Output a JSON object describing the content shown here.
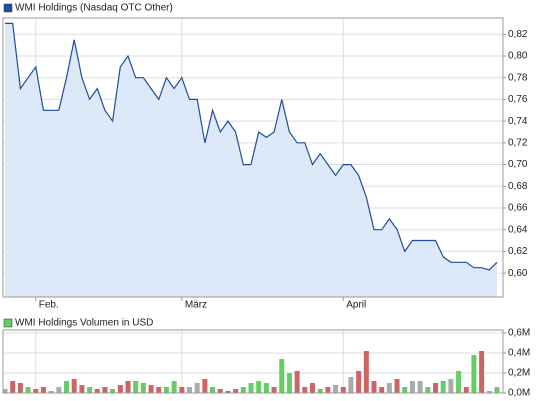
{
  "chart_data": [
    {
      "type": "line",
      "categories": [
        null,
        null,
        null,
        null,
        null,
        null,
        null,
        null,
        null,
        null,
        null,
        null,
        null,
        null,
        null,
        null,
        null,
        null,
        null,
        null,
        null,
        null,
        null,
        null,
        null,
        null,
        null,
        null,
        null,
        null,
        null,
        null,
        null,
        null,
        null,
        null,
        null,
        null,
        null,
        null,
        null,
        null,
        null,
        null,
        null,
        null,
        null,
        null,
        null,
        null,
        null,
        null,
        null,
        null,
        null,
        null,
        null,
        null,
        null,
        null,
        null,
        null,
        null,
        null,
        null
      ],
      "series": [
        {
          "name": "WMI Holdings (Nasdaq OTC Other)",
          "color": "#1f4e9c",
          "fill": "#dde8f8",
          "values": [
            0.83,
            0.83,
            0.77,
            0.78,
            0.79,
            0.75,
            0.75,
            0.75,
            0.78,
            0.815,
            0.78,
            0.76,
            0.77,
            0.75,
            0.74,
            0.79,
            0.8,
            0.78,
            0.78,
            0.77,
            0.76,
            0.78,
            0.77,
            0.78,
            0.76,
            0.76,
            0.72,
            0.75,
            0.73,
            0.74,
            0.73,
            0.7,
            0.7,
            0.73,
            0.725,
            0.73,
            0.76,
            0.73,
            0.72,
            0.72,
            0.7,
            0.71,
            0.7,
            0.69,
            0.7,
            0.7,
            0.69,
            0.67,
            0.64,
            0.64,
            0.65,
            0.64,
            0.62,
            0.63,
            0.63,
            0.63,
            0.63,
            0.615,
            0.61,
            0.61,
            0.61,
            0.605,
            0.605,
            0.603,
            0.61
          ]
        }
      ],
      "xticks": [
        {
          "value": 4,
          "label": "Feb."
        },
        {
          "value": 23,
          "label": "März"
        },
        {
          "value": 44,
          "label": "April"
        }
      ],
      "ylim": [
        0.578,
        0.835
      ],
      "yticks": [
        {
          "value": 0.6,
          "label": "0,60"
        },
        {
          "value": 0.62,
          "label": "0,62"
        },
        {
          "value": 0.64,
          "label": "0,64"
        },
        {
          "value": 0.66,
          "label": "0,66"
        },
        {
          "value": 0.68,
          "label": "0,68"
        },
        {
          "value": 0.7,
          "label": "0,70"
        },
        {
          "value": 0.72,
          "label": "0,72"
        },
        {
          "value": 0.74,
          "label": "0,74"
        },
        {
          "value": 0.76,
          "label": "0,76"
        },
        {
          "value": 0.78,
          "label": "0,78"
        },
        {
          "value": 0.8,
          "label": "0,80"
        },
        {
          "value": 0.82,
          "label": "0,82"
        }
      ],
      "grid": true
    },
    {
      "type": "bar",
      "series": [
        {
          "name": "WMI Holdings Volumen in USD",
          "color": "#66cc66",
          "values": [
            0.04,
            0.12,
            0.1,
            0.06,
            0.04,
            0.06,
            0.02,
            0.06,
            0.12,
            0.14,
            0.08,
            0.06,
            0.04,
            0.06,
            0.04,
            0.08,
            0.12,
            0.12,
            0.1,
            0.08,
            0.06,
            0.06,
            0.12,
            0.06,
            0.06,
            0.1,
            0.14,
            0.06,
            0.04,
            0.02,
            0.04,
            0.06,
            0.1,
            0.12,
            0.1,
            0.06,
            0.34,
            0.2,
            0.22,
            0.06,
            0.1,
            0.04,
            0.06,
            0.08,
            0.06,
            0.16,
            0.22,
            0.42,
            0.12,
            0.06,
            0.1,
            0.14,
            0.06,
            0.12,
            0.12,
            0.06,
            0.1,
            0.12,
            0.14,
            0.22,
            0.06,
            0.38,
            0.42,
            0.02,
            0.06
          ],
          "colors": [
            "#aaaaaa",
            "#cc6666",
            "#cc6666",
            "#66cc66",
            "#cc6666",
            "#cc6666",
            "#66cc66",
            "#aaaaaa",
            "#66cc66",
            "#cc6666",
            "#cc6666",
            "#66cc66",
            "#cc6666",
            "#cc6666",
            "#66cc66",
            "#cc6666",
            "#cc6666",
            "#66cc66",
            "#66cc66",
            "#cc6666",
            "#cc6666",
            "#66cc66",
            "#66cc66",
            "#cc6666",
            "#aaaaaa",
            "#aaaaaa",
            "#cc6666",
            "#66cc66",
            "#cc6666",
            "#cc6666",
            "#cc6666",
            "#66cc66",
            "#66cc66",
            "#66cc66",
            "#66cc66",
            "#cc6666",
            "#66cc66",
            "#66cc66",
            "#cc6666",
            "#cc6666",
            "#cc6666",
            "#66cc66",
            "#cc6666",
            "#aaaaaa",
            "#cc6666",
            "#aaaaaa",
            "#cc6666",
            "#cc6666",
            "#cc6666",
            "#cc6666",
            "#aaaaaa",
            "#cc6666",
            "#66cc66",
            "#aaaaaa",
            "#aaaaaa",
            "#66cc66",
            "#cc6666",
            "#66cc66",
            "#aaaaaa",
            "#66cc66",
            "#cc6666",
            "#66cc66",
            "#cc6666",
            "#aaaaaa",
            "#66cc66"
          ]
        }
      ],
      "ylim": [
        0,
        0.63
      ],
      "yticks": [
        {
          "value": 0,
          "label": "0,0M"
        },
        {
          "value": 0.2,
          "label": "0,2M"
        },
        {
          "value": 0.4,
          "label": "0,4M"
        },
        {
          "value": 0.6,
          "label": "0,6M"
        }
      ],
      "grid": true
    }
  ]
}
